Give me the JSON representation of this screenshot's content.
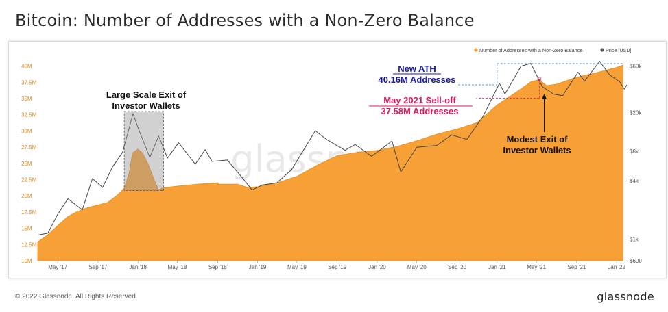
{
  "header": {
    "title": "Bitcoin: Number of Addresses with a Non-Zero Balance"
  },
  "footer": {
    "copyright": "© 2022 Glassnode. All Rights Reserved.",
    "brand": "glassnode"
  },
  "watermark": "glassnode",
  "colors": {
    "addresses": "#f7a035",
    "addresses_stroke": "#e8891a",
    "price": "#444444",
    "left_axis": "#d98a1b",
    "right_axis": "#555555",
    "ath": "#1a1aa8",
    "selloff": "#e0195a",
    "annotation": "#111111"
  },
  "chart_data": {
    "type": "area",
    "legend": {
      "placement": "top-right",
      "items": [
        {
          "name": "Number of Addresses with a Non-Zero Balance",
          "color": "#f7a035"
        },
        {
          "name": "Price [USD]",
          "color": "#555555"
        }
      ]
    },
    "x_ticks": [
      "May '17",
      "Sep '17",
      "Jan '18",
      "May '18",
      "Sep '18",
      "Jan '19",
      "May '19",
      "Sep '19",
      "Jan '20",
      "May '20",
      "Sep '20",
      "Jan '21",
      "May '21",
      "Sep '21",
      "Jan '22"
    ],
    "x_range": [
      "2017-03-01",
      "2022-02-01"
    ],
    "y_left": {
      "range": [
        10,
        40.8
      ],
      "ticks": [
        10,
        12.5,
        15,
        17.5,
        20,
        22.5,
        25,
        27.5,
        30,
        32.5,
        35,
        37.5,
        40
      ],
      "tick_labels": [
        "10M",
        "12.5M",
        "15M",
        "17.5M",
        "20M",
        "22.5M",
        "25M",
        "27.5M",
        "30M",
        "32.5M",
        "35M",
        "37.5M",
        "40M"
      ]
    },
    "y_right": {
      "scale": "log",
      "range": [
        600,
        68000
      ],
      "ticks": [
        600,
        1000,
        4000,
        8000,
        20000,
        60000
      ],
      "tick_labels": [
        "$600",
        "$1k",
        "$4k",
        "$8k",
        "$20k",
        "$60k"
      ]
    },
    "series": [
      {
        "name": "Number of Addresses with a Non-Zero Balance",
        "axis": "left",
        "points": [
          [
            "2017-03-01",
            12.9
          ],
          [
            "2017-04-01",
            14.0
          ],
          [
            "2017-05-01",
            15.4
          ],
          [
            "2017-06-01",
            16.8
          ],
          [
            "2017-07-01",
            17.6
          ],
          [
            "2017-08-01",
            18.2
          ],
          [
            "2017-09-01",
            18.6
          ],
          [
            "2017-10-01",
            19.0
          ],
          [
            "2017-11-01",
            20.2
          ],
          [
            "2017-11-20",
            21.2
          ],
          [
            "2017-12-05",
            23.5
          ],
          [
            "2017-12-15",
            26.6
          ],
          [
            "2018-01-01",
            27.2
          ],
          [
            "2018-01-15",
            26.6
          ],
          [
            "2018-02-01",
            24.9
          ],
          [
            "2018-02-20",
            22.4
          ],
          [
            "2018-03-05",
            20.9
          ],
          [
            "2018-03-15",
            21.2
          ],
          [
            "2018-05-01",
            21.5
          ],
          [
            "2018-07-01",
            21.8
          ],
          [
            "2018-09-01",
            22.0
          ],
          [
            "2018-09-05",
            21.8
          ],
          [
            "2018-11-01",
            21.8
          ],
          [
            "2018-12-01",
            21.3
          ],
          [
            "2019-01-01",
            21.4
          ],
          [
            "2019-03-01",
            22.0
          ],
          [
            "2019-05-01",
            23.0
          ],
          [
            "2019-07-01",
            24.7
          ],
          [
            "2019-09-01",
            26.2
          ],
          [
            "2019-11-01",
            26.7
          ],
          [
            "2020-01-01",
            27.0
          ],
          [
            "2020-03-01",
            27.6
          ],
          [
            "2020-05-01",
            28.5
          ],
          [
            "2020-07-01",
            29.5
          ],
          [
            "2020-09-01",
            30.3
          ],
          [
            "2020-11-01",
            31.3
          ],
          [
            "2021-01-01",
            34.0
          ],
          [
            "2021-03-01",
            36.0
          ],
          [
            "2021-04-15",
            37.6
          ],
          [
            "2021-05-10",
            37.9
          ],
          [
            "2021-06-01",
            37.0
          ],
          [
            "2021-07-01",
            37.2
          ],
          [
            "2021-09-01",
            38.3
          ],
          [
            "2021-11-01",
            39.0
          ],
          [
            "2022-01-01",
            39.8
          ],
          [
            "2022-01-20",
            40.16
          ]
        ]
      },
      {
        "name": "Price [USD]",
        "axis": "right",
        "points": [
          [
            "2017-03-01",
            1100
          ],
          [
            "2017-04-01",
            1150
          ],
          [
            "2017-05-01",
            1800
          ],
          [
            "2017-06-01",
            2600
          ],
          [
            "2017-07-15",
            2000
          ],
          [
            "2017-08-15",
            4200
          ],
          [
            "2017-09-15",
            3400
          ],
          [
            "2017-10-15",
            5500
          ],
          [
            "2017-11-15",
            7800
          ],
          [
            "2017-12-17",
            19500
          ],
          [
            "2018-01-01",
            14000
          ],
          [
            "2018-02-06",
            6900
          ],
          [
            "2018-03-05",
            11500
          ],
          [
            "2018-04-01",
            6800
          ],
          [
            "2018-05-05",
            9800
          ],
          [
            "2018-06-25",
            5900
          ],
          [
            "2018-07-25",
            8300
          ],
          [
            "2018-08-15",
            6300
          ],
          [
            "2018-10-01",
            6500
          ],
          [
            "2018-11-20",
            4100
          ],
          [
            "2018-12-15",
            3200
          ],
          [
            "2019-01-15",
            3600
          ],
          [
            "2019-03-01",
            3800
          ],
          [
            "2019-04-15",
            5200
          ],
          [
            "2019-06-26",
            13000
          ],
          [
            "2019-08-01",
            10500
          ],
          [
            "2019-09-25",
            8200
          ],
          [
            "2019-10-26",
            9400
          ],
          [
            "2019-12-15",
            7100
          ],
          [
            "2020-02-15",
            10200
          ],
          [
            "2020-03-13",
            4900
          ],
          [
            "2020-05-01",
            8800
          ],
          [
            "2020-07-01",
            9200
          ],
          [
            "2020-08-15",
            11800
          ],
          [
            "2020-10-01",
            10600
          ],
          [
            "2020-11-20",
            18500
          ],
          [
            "2021-01-08",
            40000
          ],
          [
            "2021-01-25",
            31000
          ],
          [
            "2021-03-15",
            60000
          ],
          [
            "2021-04-14",
            64000
          ],
          [
            "2021-05-19",
            37000
          ],
          [
            "2021-06-22",
            31000
          ],
          [
            "2021-07-20",
            29800
          ],
          [
            "2021-09-05",
            52000
          ],
          [
            "2021-09-25",
            42000
          ],
          [
            "2021-11-10",
            67500
          ],
          [
            "2021-12-10",
            49000
          ],
          [
            "2022-01-10",
            41500
          ],
          [
            "2022-01-24",
            35000
          ],
          [
            "2022-02-01",
            38500
          ]
        ]
      }
    ],
    "annotations": [
      {
        "text": [
          "Large Scale Exit of",
          "Investor Wallets"
        ]
      },
      {
        "text": [
          "New ATH",
          "40.16M Addresses"
        ]
      },
      {
        "text": [
          "May 2021 Sell-off",
          "37.58M Addresses"
        ]
      },
      {
        "text": [
          "Modest Exit of",
          "Investor Wallets"
        ]
      }
    ]
  }
}
